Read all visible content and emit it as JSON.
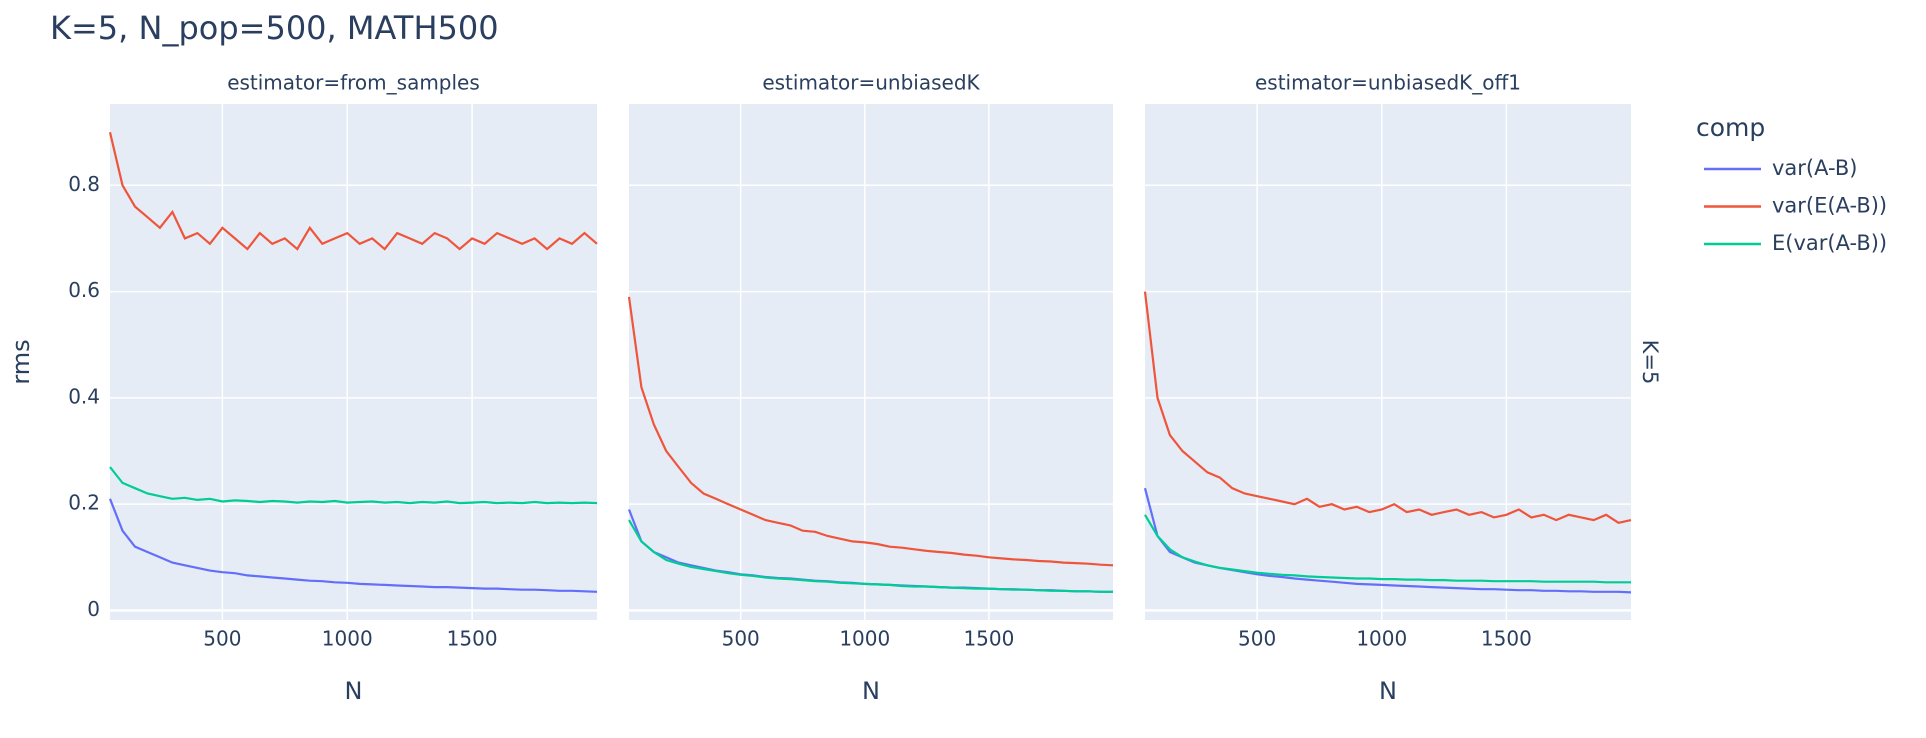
{
  "title": "K=5, N_pop=500, MATH500",
  "legend_title": "comp",
  "row_label": "K=5",
  "chart_data": [
    {
      "type": "line",
      "subtitle": "estimator=from_samples",
      "x_label": "N",
      "y_label": "rms",
      "x": [
        50,
        100,
        150,
        200,
        250,
        300,
        350,
        400,
        450,
        500,
        550,
        600,
        650,
        700,
        750,
        800,
        850,
        900,
        950,
        1000,
        1050,
        1100,
        1150,
        1200,
        1250,
        1300,
        1350,
        1400,
        1450,
        1500,
        1550,
        1600,
        1650,
        1700,
        1750,
        1800,
        1850,
        1900,
        1950,
        2000
      ],
      "xlim": [
        50,
        2000
      ],
      "ylim": [
        -0.018,
        0.953
      ],
      "xticks": [
        500,
        1000,
        1500
      ],
      "yticks": [
        0,
        0.2,
        0.4,
        0.6,
        0.8
      ],
      "grid": true,
      "series": [
        {
          "name": "var(A-B)",
          "color": "#636efa",
          "values": [
            0.21,
            0.15,
            0.12,
            0.11,
            0.1,
            0.09,
            0.085,
            0.08,
            0.075,
            0.072,
            0.07,
            0.066,
            0.064,
            0.062,
            0.06,
            0.058,
            0.056,
            0.055,
            0.053,
            0.052,
            0.05,
            0.049,
            0.048,
            0.047,
            0.046,
            0.045,
            0.044,
            0.044,
            0.043,
            0.042,
            0.041,
            0.041,
            0.04,
            0.039,
            0.039,
            0.038,
            0.037,
            0.037,
            0.036,
            0.035
          ]
        },
        {
          "name": "var(E(A-B))",
          "color": "#ef553b",
          "values": [
            0.9,
            0.8,
            0.76,
            0.74,
            0.72,
            0.75,
            0.7,
            0.71,
            0.69,
            0.72,
            0.7,
            0.68,
            0.71,
            0.69,
            0.7,
            0.68,
            0.72,
            0.69,
            0.7,
            0.71,
            0.69,
            0.7,
            0.68,
            0.71,
            0.7,
            0.69,
            0.71,
            0.7,
            0.68,
            0.7,
            0.69,
            0.71,
            0.7,
            0.69,
            0.7,
            0.68,
            0.7,
            0.69,
            0.71,
            0.69
          ]
        },
        {
          "name": "E(var(A-B))",
          "color": "#00cc96",
          "values": [
            0.27,
            0.24,
            0.23,
            0.22,
            0.215,
            0.21,
            0.212,
            0.208,
            0.21,
            0.205,
            0.207,
            0.206,
            0.204,
            0.206,
            0.205,
            0.203,
            0.205,
            0.204,
            0.206,
            0.203,
            0.204,
            0.205,
            0.203,
            0.204,
            0.202,
            0.204,
            0.203,
            0.205,
            0.202,
            0.203,
            0.204,
            0.202,
            0.203,
            0.202,
            0.204,
            0.202,
            0.203,
            0.202,
            0.203,
            0.202
          ]
        }
      ]
    },
    {
      "type": "line",
      "subtitle": "estimator=unbiasedK",
      "x_label": "N",
      "x": [
        50,
        100,
        150,
        200,
        250,
        300,
        350,
        400,
        450,
        500,
        550,
        600,
        650,
        700,
        750,
        800,
        850,
        900,
        950,
        1000,
        1050,
        1100,
        1150,
        1200,
        1250,
        1300,
        1350,
        1400,
        1450,
        1500,
        1550,
        1600,
        1650,
        1700,
        1750,
        1800,
        1850,
        1900,
        1950,
        2000
      ],
      "xlim": [
        50,
        2000
      ],
      "ylim": [
        -0.018,
        0.953
      ],
      "xticks": [
        500,
        1000,
        1500
      ],
      "yticks": [
        0,
        0.2,
        0.4,
        0.6,
        0.8
      ],
      "grid": true,
      "series": [
        {
          "name": "var(A-B)",
          "color": "#636efa",
          "values": [
            0.19,
            0.13,
            0.11,
            0.1,
            0.09,
            0.085,
            0.08,
            0.075,
            0.072,
            0.068,
            0.066,
            0.063,
            0.061,
            0.06,
            0.058,
            0.056,
            0.055,
            0.053,
            0.052,
            0.05,
            0.049,
            0.048,
            0.047,
            0.046,
            0.045,
            0.044,
            0.043,
            0.043,
            0.042,
            0.041,
            0.04,
            0.04,
            0.039,
            0.038,
            0.038,
            0.037,
            0.036,
            0.036,
            0.035,
            0.035
          ]
        },
        {
          "name": "var(E(A-B))",
          "color": "#ef553b",
          "values": [
            0.59,
            0.42,
            0.35,
            0.3,
            0.27,
            0.24,
            0.22,
            0.21,
            0.2,
            0.19,
            0.18,
            0.17,
            0.165,
            0.16,
            0.15,
            0.148,
            0.14,
            0.135,
            0.13,
            0.128,
            0.125,
            0.12,
            0.118,
            0.115,
            0.112,
            0.11,
            0.108,
            0.105,
            0.103,
            0.1,
            0.098,
            0.096,
            0.095,
            0.093,
            0.092,
            0.09,
            0.089,
            0.088,
            0.086,
            0.085
          ]
        },
        {
          "name": "E(var(A-B))",
          "color": "#00cc96",
          "values": [
            0.17,
            0.13,
            0.11,
            0.095,
            0.088,
            0.082,
            0.078,
            0.074,
            0.07,
            0.067,
            0.065,
            0.062,
            0.06,
            0.059,
            0.057,
            0.055,
            0.054,
            0.052,
            0.051,
            0.05,
            0.049,
            0.048,
            0.046,
            0.045,
            0.045,
            0.044,
            0.043,
            0.042,
            0.041,
            0.041,
            0.04,
            0.039,
            0.039,
            0.038,
            0.037,
            0.037,
            0.036,
            0.036,
            0.035,
            0.035
          ]
        }
      ]
    },
    {
      "type": "line",
      "subtitle": "estimator=unbiasedK_off1",
      "x_label": "N",
      "x": [
        50,
        100,
        150,
        200,
        250,
        300,
        350,
        400,
        450,
        500,
        550,
        600,
        650,
        700,
        750,
        800,
        850,
        900,
        950,
        1000,
        1050,
        1100,
        1150,
        1200,
        1250,
        1300,
        1350,
        1400,
        1450,
        1500,
        1550,
        1600,
        1650,
        1700,
        1750,
        1800,
        1850,
        1900,
        1950,
        2000
      ],
      "xlim": [
        50,
        2000
      ],
      "ylim": [
        -0.018,
        0.953
      ],
      "xticks": [
        500,
        1000,
        1500
      ],
      "yticks": [
        0,
        0.2,
        0.4,
        0.6,
        0.8
      ],
      "grid": true,
      "series": [
        {
          "name": "var(A-B)",
          "color": "#636efa",
          "values": [
            0.23,
            0.14,
            0.11,
            0.1,
            0.09,
            0.085,
            0.08,
            0.076,
            0.072,
            0.068,
            0.065,
            0.063,
            0.06,
            0.058,
            0.056,
            0.054,
            0.052,
            0.05,
            0.049,
            0.048,
            0.047,
            0.046,
            0.045,
            0.044,
            0.043,
            0.042,
            0.041,
            0.04,
            0.04,
            0.039,
            0.038,
            0.038,
            0.037,
            0.037,
            0.036,
            0.036,
            0.035,
            0.035,
            0.035,
            0.034
          ]
        },
        {
          "name": "var(E(A-B))",
          "color": "#ef553b",
          "values": [
            0.6,
            0.4,
            0.33,
            0.3,
            0.28,
            0.26,
            0.25,
            0.23,
            0.22,
            0.215,
            0.21,
            0.205,
            0.2,
            0.21,
            0.195,
            0.2,
            0.19,
            0.195,
            0.185,
            0.19,
            0.2,
            0.185,
            0.19,
            0.18,
            0.185,
            0.19,
            0.18,
            0.185,
            0.175,
            0.18,
            0.19,
            0.175,
            0.18,
            0.17,
            0.18,
            0.175,
            0.17,
            0.18,
            0.165,
            0.17
          ]
        },
        {
          "name": "E(var(A-B))",
          "color": "#00cc96",
          "values": [
            0.18,
            0.14,
            0.115,
            0.1,
            0.092,
            0.085,
            0.08,
            0.077,
            0.074,
            0.071,
            0.069,
            0.067,
            0.066,
            0.064,
            0.063,
            0.062,
            0.061,
            0.06,
            0.06,
            0.059,
            0.059,
            0.058,
            0.058,
            0.057,
            0.057,
            0.056,
            0.056,
            0.056,
            0.055,
            0.055,
            0.055,
            0.055,
            0.054,
            0.054,
            0.054,
            0.054,
            0.054,
            0.053,
            0.053,
            0.053
          ]
        }
      ]
    }
  ]
}
